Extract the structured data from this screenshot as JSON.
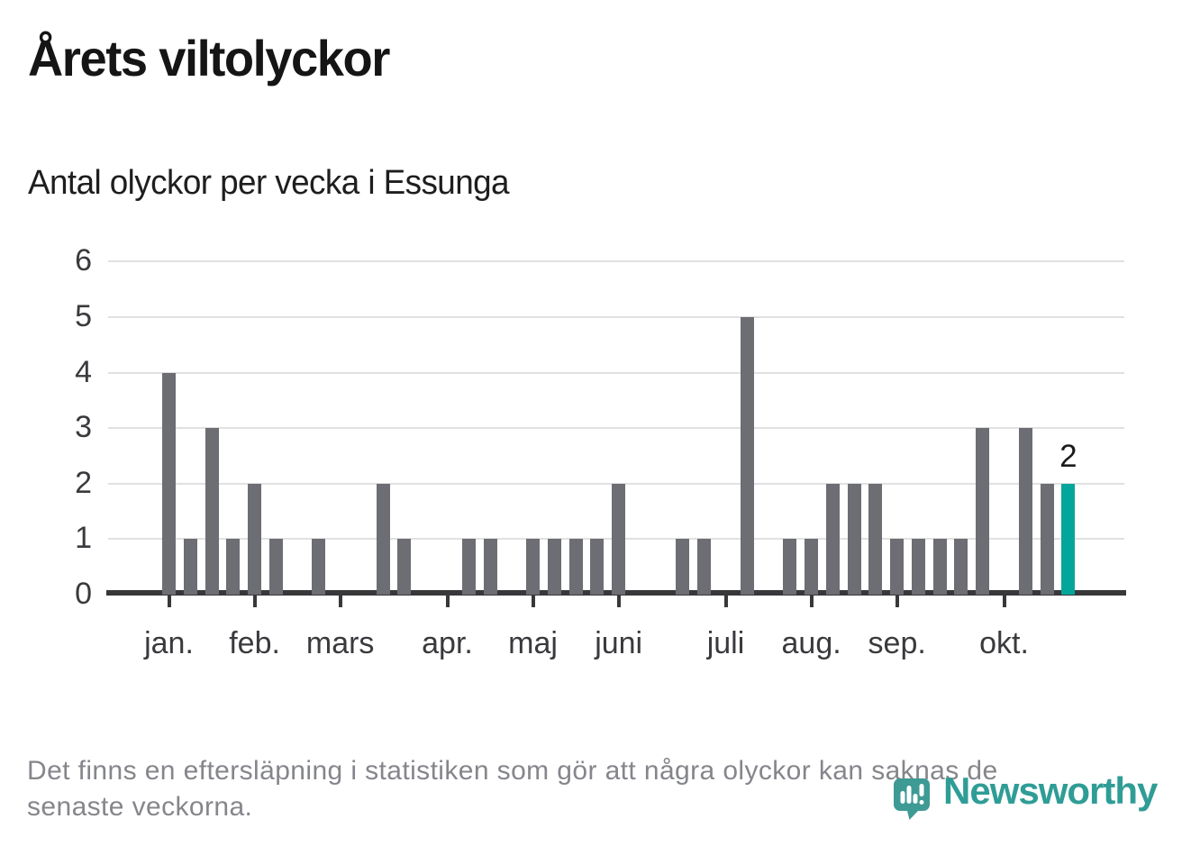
{
  "title": "Årets viltolyckor",
  "subtitle": "Antal olyckor per vecka i Essunga",
  "chart_data": {
    "type": "bar",
    "title": "Årets viltolyckor",
    "subtitle": "Antal olyckor per vecka i Essunga",
    "x_unit": "vecka",
    "weeks": [
      1,
      2,
      3,
      4,
      5,
      6,
      7,
      8,
      9,
      10,
      11,
      12,
      13,
      14,
      15,
      16,
      17,
      18,
      19,
      20,
      21,
      22,
      23,
      24,
      25,
      26,
      27,
      28,
      29,
      30,
      31,
      32,
      33,
      34,
      35,
      36,
      37,
      38,
      39,
      40,
      41,
      42,
      43
    ],
    "values": [
      4,
      1,
      3,
      1,
      2,
      1,
      0,
      1,
      0,
      0,
      2,
      1,
      0,
      0,
      1,
      1,
      0,
      1,
      1,
      1,
      1,
      2,
      0,
      0,
      1,
      1,
      0,
      5,
      0,
      1,
      1,
      2,
      2,
      2,
      1,
      1,
      1,
      1,
      3,
      0,
      3,
      2,
      2
    ],
    "highlight_last": true,
    "last_value_label": "2",
    "yticks": [
      0,
      1,
      2,
      3,
      4,
      5,
      6
    ],
    "ylim": [
      0,
      6
    ],
    "grid": "horizontal",
    "legend": "none",
    "month_ticks": [
      {
        "label": "jan.",
        "week": 1
      },
      {
        "label": "feb.",
        "week": 5
      },
      {
        "label": "mars",
        "week": 9
      },
      {
        "label": "apr.",
        "week": 14
      },
      {
        "label": "maj",
        "week": 18
      },
      {
        "label": "juni",
        "week": 22
      },
      {
        "label": "juli",
        "week": 27
      },
      {
        "label": "aug.",
        "week": 31
      },
      {
        "label": "sep.",
        "week": 35
      },
      {
        "label": "okt.",
        "week": 40
      }
    ],
    "colors": {
      "bar": "#6d6d74",
      "highlight": "#04a69c",
      "axis": "#38383a",
      "gridline": "#e1e1e2",
      "tick_label": "#3a3a3e"
    }
  },
  "footer": {
    "lines": [
      "Det finns en eftersläpning i statistiken som gör att några olyckor kan saknas de",
      "senaste veckorna."
    ]
  },
  "logo": {
    "name": "Newsworthy",
    "icon": "newsworthy-pin-barchart-icon",
    "word_color": "#2f9d96",
    "icon_color": "#3e9a94"
  }
}
